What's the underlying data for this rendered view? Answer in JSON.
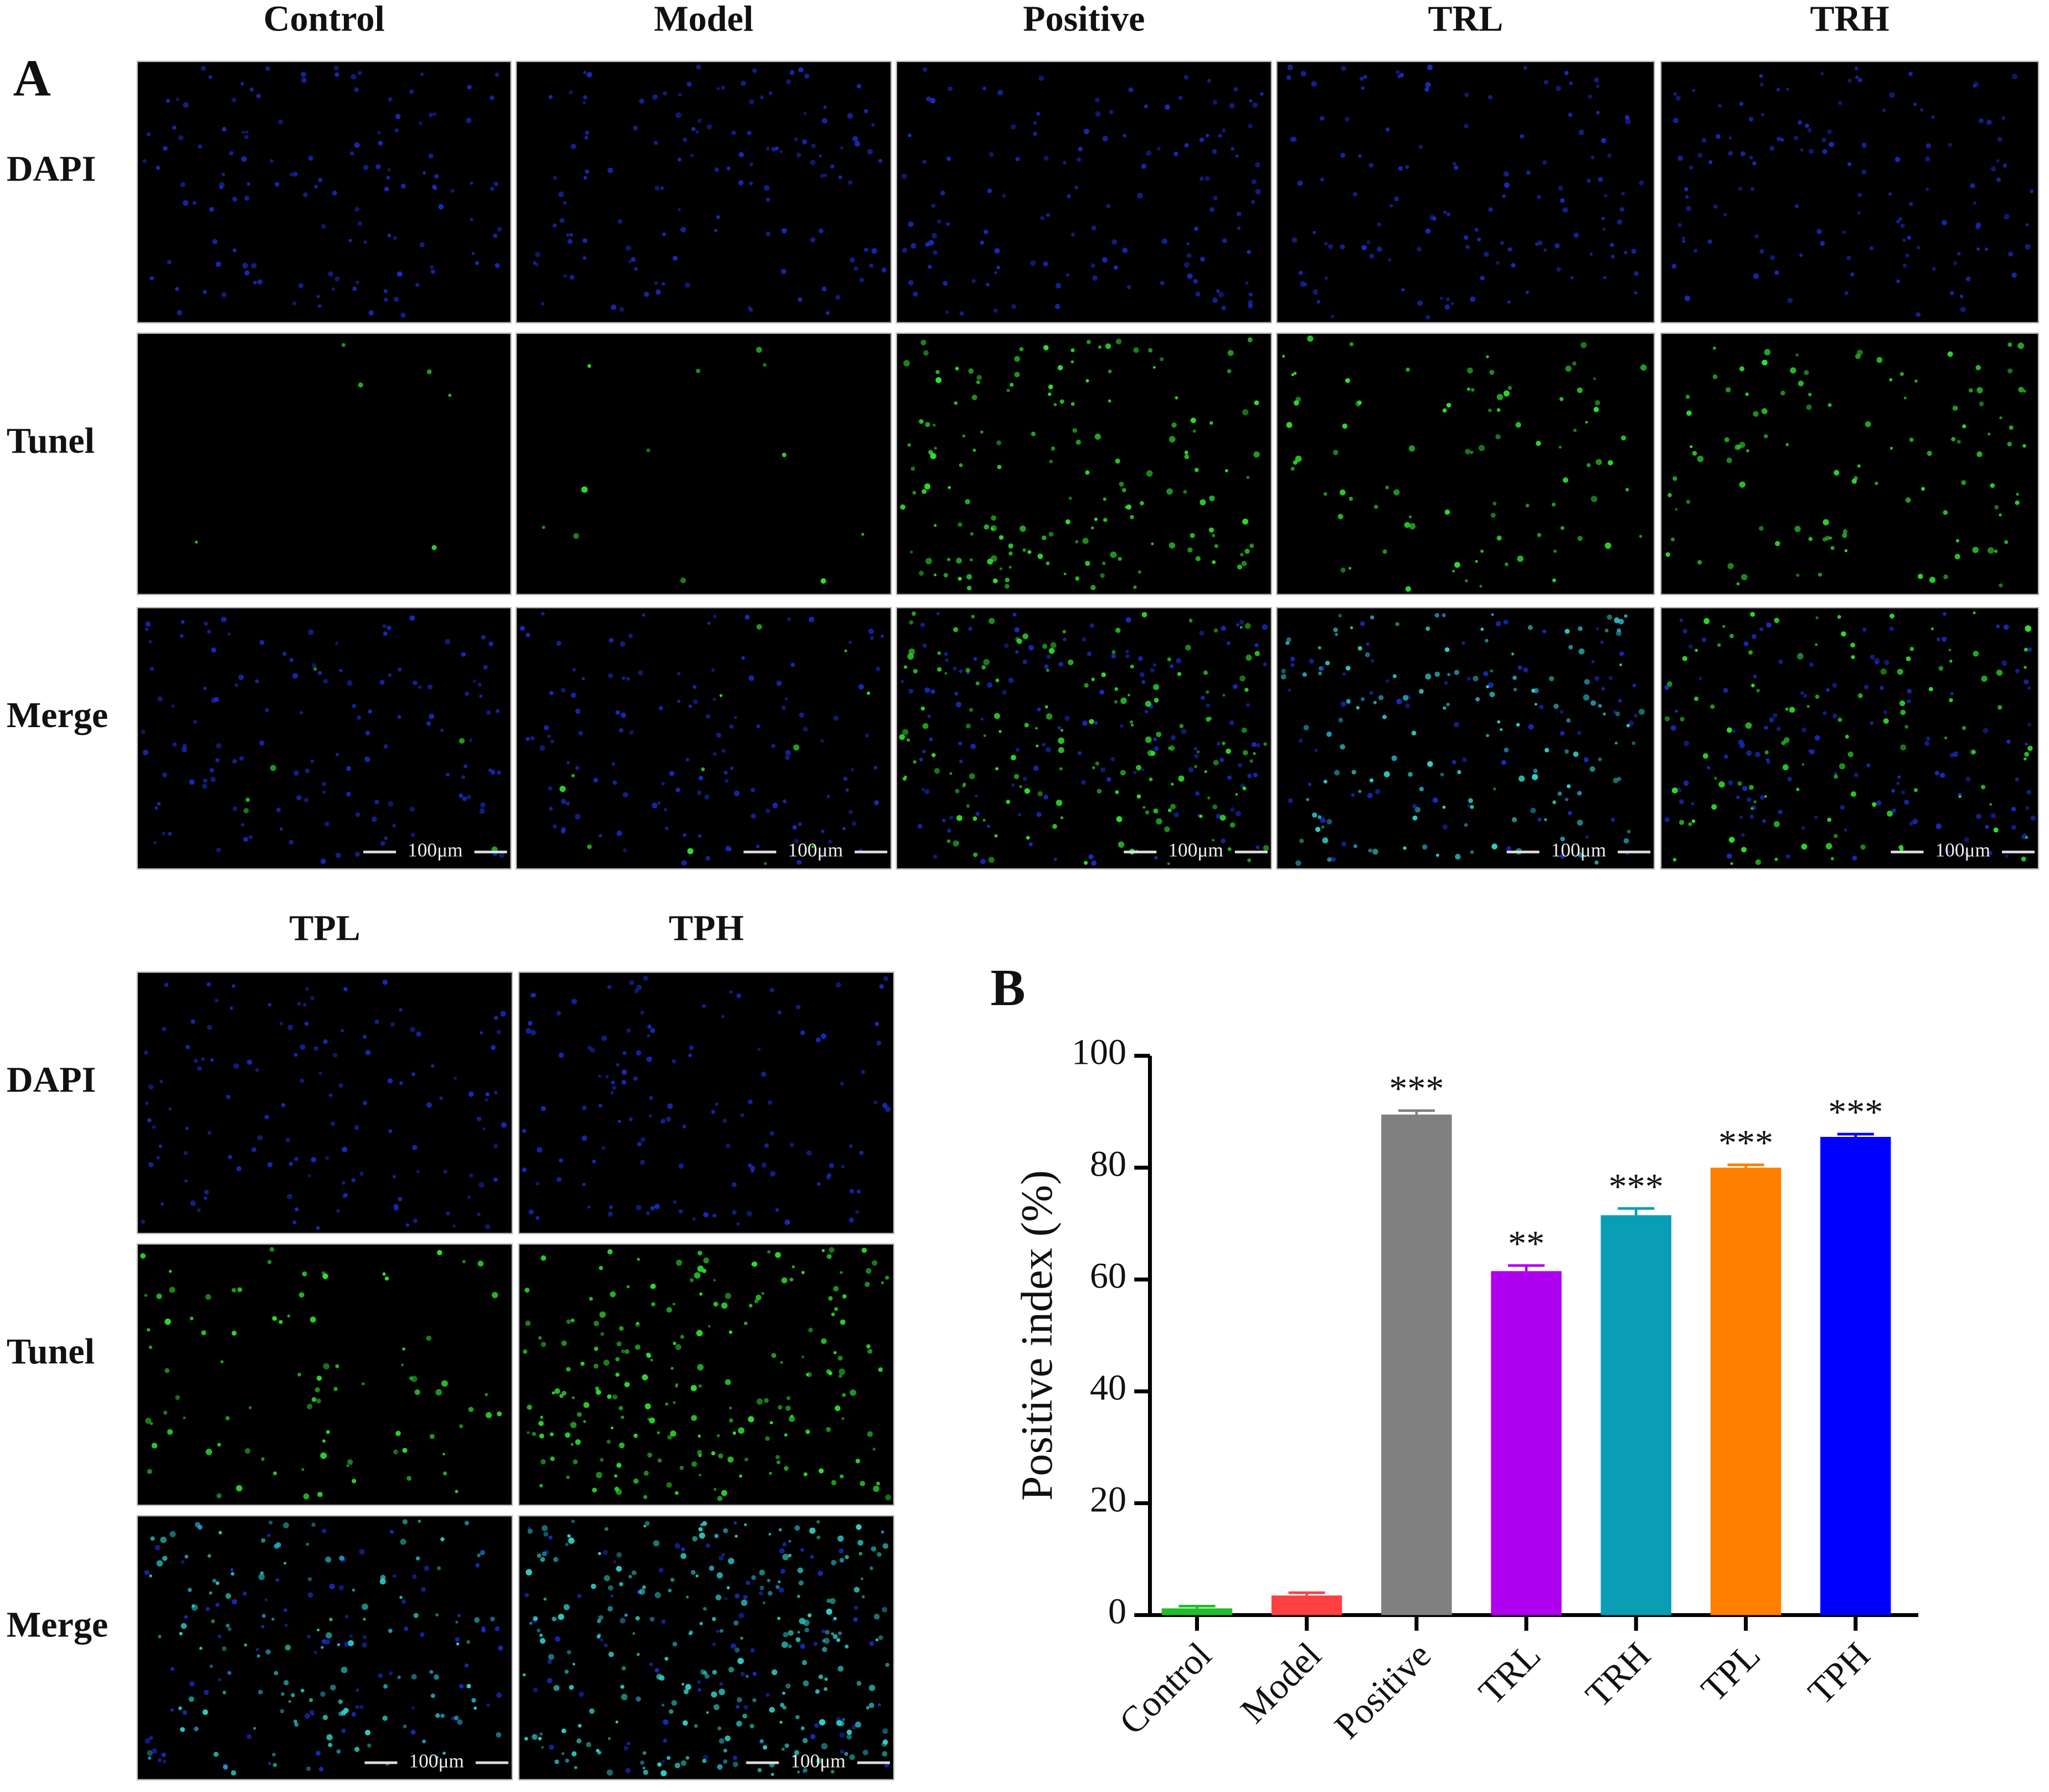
{
  "panel_a": {
    "label": "A",
    "columns": [
      "Control",
      "Model",
      "Positive",
      "TRL",
      "TRH",
      "TPL",
      "TPH"
    ],
    "rows": [
      "DAPI",
      "Tunel",
      "Merge"
    ],
    "scale_bar": "100μm"
  },
  "chart_data": {
    "type": "bar",
    "label": "B",
    "y_label": "Positive index (%)",
    "categories": [
      "Control",
      "Model",
      "Positive",
      "TRL",
      "TRH",
      "TPL",
      "TPH"
    ],
    "values": [
      1.2,
      3.5,
      89.5,
      61.5,
      71.5,
      80,
      85.5
    ],
    "errors": [
      0.4,
      0.5,
      0.7,
      1,
      1.2,
      0.5,
      0.5
    ],
    "colors": [
      "#1fbf2a",
      "#ff4040",
      "#808080",
      "#b000f0",
      "#0a9eb5",
      "#ff8000",
      "#0000ff"
    ],
    "significance": [
      null,
      null,
      "***",
      "**",
      "***",
      "***",
      "***"
    ],
    "ylim": [
      0,
      100
    ],
    "yticks": [
      0,
      20,
      40,
      60,
      80,
      100
    ]
  }
}
